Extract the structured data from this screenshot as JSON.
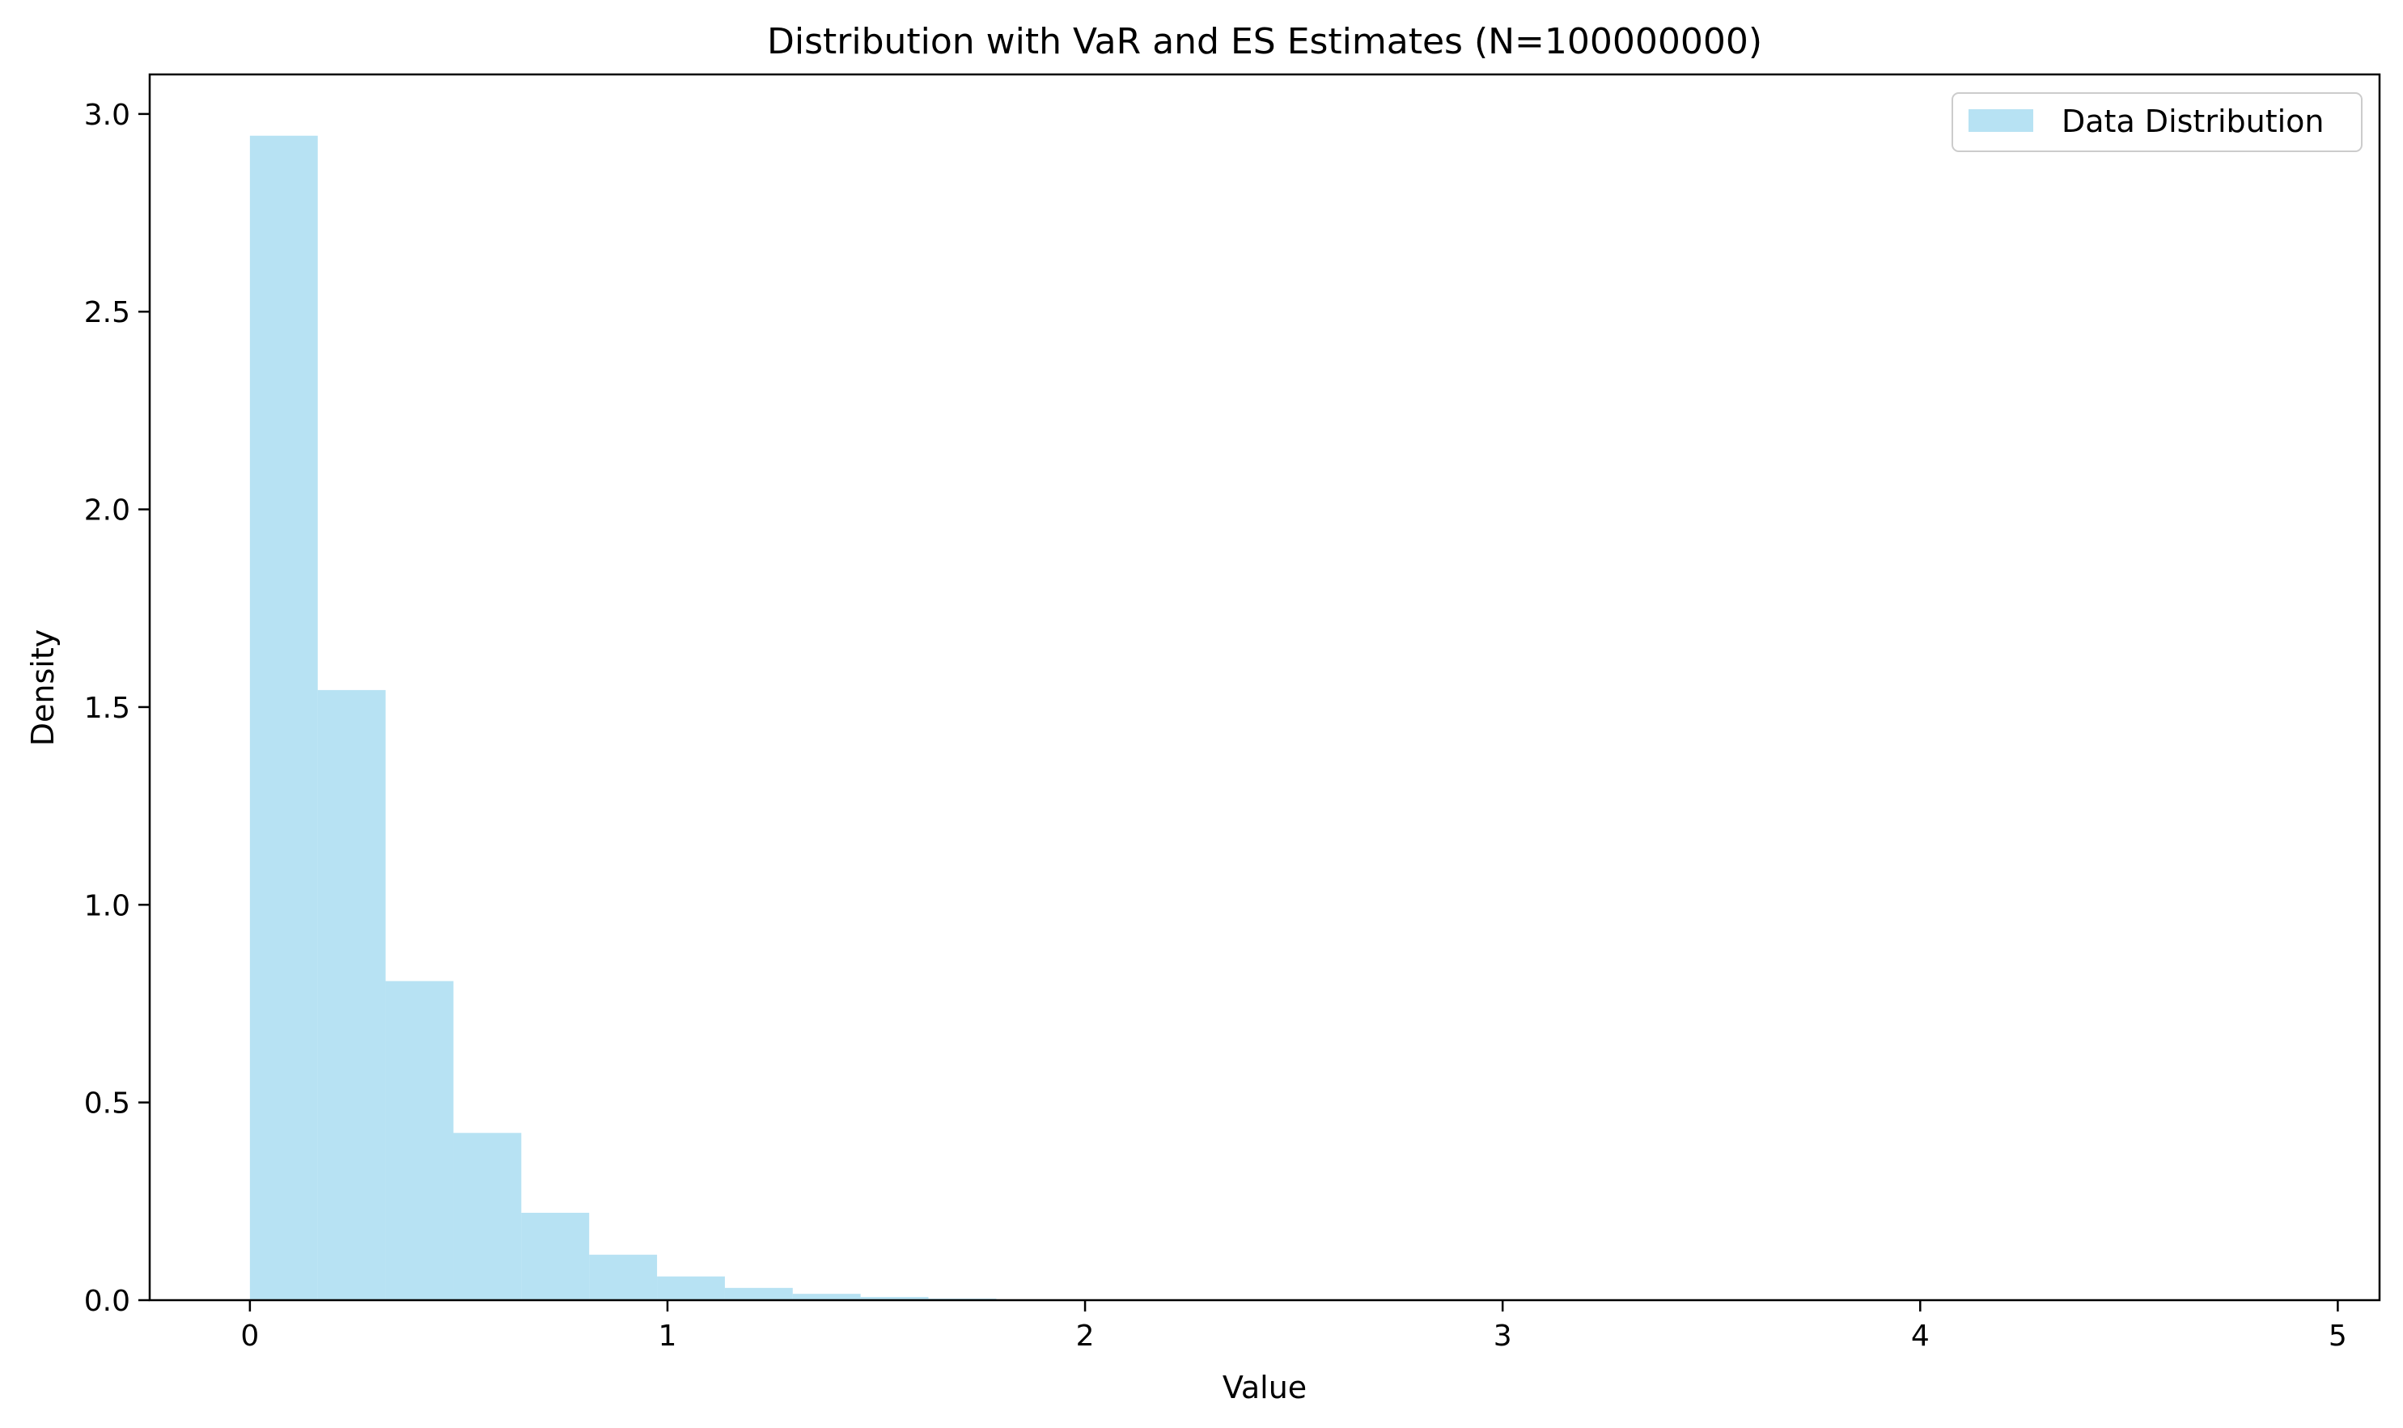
{
  "chart_data": {
    "type": "bar",
    "title": "Distribution with VaR and ES Estimates (N=100000000)",
    "xlabel": "Value",
    "ylabel": "Density",
    "xlim": [
      -0.24,
      5.1
    ],
    "ylim": [
      0,
      3.1
    ],
    "x_ticks": [
      0,
      1,
      2,
      3,
      4,
      5
    ],
    "x_tick_labels": [
      "0",
      "1",
      "2",
      "3",
      "4",
      "5"
    ],
    "y_ticks": [
      0.0,
      0.5,
      1.0,
      1.5,
      2.0,
      2.5,
      3.0
    ],
    "y_tick_labels": [
      "0.0",
      "0.5",
      "1.0",
      "1.5",
      "2.0",
      "2.5",
      "3.0"
    ],
    "grid": false,
    "legend_position": "top-right",
    "bar_color": "#87CEEB",
    "bar_opacity": 0.6,
    "bin_width": 0.1625,
    "series": [
      {
        "name": "Data Distribution",
        "bin_starts": [
          0,
          0.1625,
          0.325,
          0.4875,
          0.65,
          0.8125,
          0.975,
          1.1375,
          1.3,
          1.4625,
          1.625,
          1.7875,
          1.95,
          2.1125,
          2.275
        ],
        "values": [
          2.945,
          1.543,
          0.807,
          0.423,
          0.221,
          0.115,
          0.06,
          0.031,
          0.016,
          0.008,
          0.004,
          0.002,
          0.001,
          0.0005,
          0.0003
        ]
      }
    ]
  }
}
